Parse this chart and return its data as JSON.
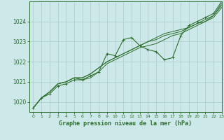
{
  "title": "Graphe pression niveau de la mer (hPa)",
  "bg_color": "#cce8e8",
  "grid_color": "#aacccc",
  "line_color": "#2d6e2d",
  "xlim": [
    -0.5,
    23
  ],
  "ylim": [
    1019.5,
    1025.0
  ],
  "yticks": [
    1020,
    1021,
    1022,
    1023,
    1024
  ],
  "xticks": [
    0,
    1,
    2,
    3,
    4,
    5,
    6,
    7,
    8,
    9,
    10,
    11,
    12,
    13,
    14,
    15,
    16,
    17,
    18,
    19,
    20,
    21,
    22,
    23
  ],
  "series": [
    [
      1019.7,
      1020.2,
      1020.4,
      1020.8,
      1020.9,
      1021.1,
      1021.1,
      1021.3,
      1021.5,
      1022.4,
      1022.3,
      1023.1,
      1023.2,
      1022.8,
      1022.6,
      1022.5,
      1022.1,
      1022.2,
      1023.3,
      1023.8,
      1024.0,
      1024.2,
      1024.4,
      1025.0
    ],
    [
      1019.7,
      1020.2,
      1020.5,
      1020.9,
      1021.0,
      1021.2,
      1021.2,
      1021.4,
      1021.7,
      1022.0,
      1022.2,
      1022.4,
      1022.6,
      1022.8,
      1023.0,
      1023.2,
      1023.4,
      1023.5,
      1023.6,
      1023.7,
      1023.9,
      1024.0,
      1024.3,
      1024.8
    ],
    [
      1019.7,
      1020.2,
      1020.5,
      1020.9,
      1021.0,
      1021.2,
      1021.2,
      1021.4,
      1021.7,
      1022.0,
      1022.2,
      1022.4,
      1022.6,
      1022.8,
      1023.0,
      1023.1,
      1023.3,
      1023.4,
      1023.5,
      1023.7,
      1023.9,
      1024.1,
      1024.3,
      1024.9
    ],
    [
      1019.7,
      1020.2,
      1020.5,
      1020.9,
      1021.0,
      1021.2,
      1021.1,
      1021.2,
      1021.5,
      1021.9,
      1022.1,
      1022.3,
      1022.5,
      1022.7,
      1022.8,
      1022.9,
      1023.1,
      1023.3,
      1023.4,
      1023.6,
      1023.8,
      1024.0,
      1024.2,
      1024.7
    ]
  ]
}
